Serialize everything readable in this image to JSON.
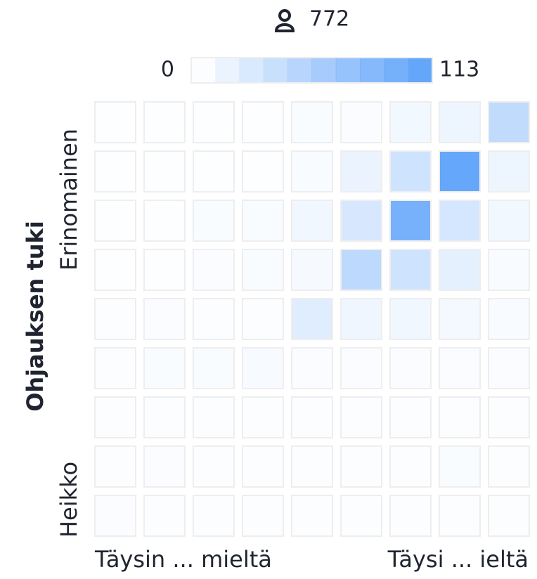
{
  "chart_data": {
    "type": "heatmap",
    "count": 772,
    "zlim": [
      0,
      113
    ],
    "color": "#5fa3fa",
    "ylabel": "Ohjauksen tuki",
    "y_labels": [
      "Erinomainen",
      "Heikko"
    ],
    "x_labels": [
      "Täysin ... mieltä",
      "Täysi ... ieltä"
    ],
    "values": [
      [
        0,
        0,
        0,
        0,
        3,
        2,
        8,
        12,
        45
      ],
      [
        0,
        0,
        0,
        0,
        4,
        14,
        35,
        113,
        12
      ],
      [
        0,
        0,
        3,
        3,
        9,
        28,
        100,
        30,
        8
      ],
      [
        0,
        0,
        2,
        3,
        6,
        48,
        35,
        18,
        4
      ],
      [
        1,
        2,
        1,
        1,
        22,
        10,
        9,
        7,
        4
      ],
      [
        1,
        3,
        3,
        5,
        2,
        2,
        2,
        2,
        2
      ],
      [
        1,
        1,
        1,
        1,
        1,
        1,
        1,
        1,
        1
      ],
      [
        1,
        2,
        1,
        1,
        1,
        1,
        1,
        3,
        1
      ],
      [
        2,
        1,
        1,
        1,
        1,
        1,
        1,
        1,
        1
      ]
    ]
  }
}
